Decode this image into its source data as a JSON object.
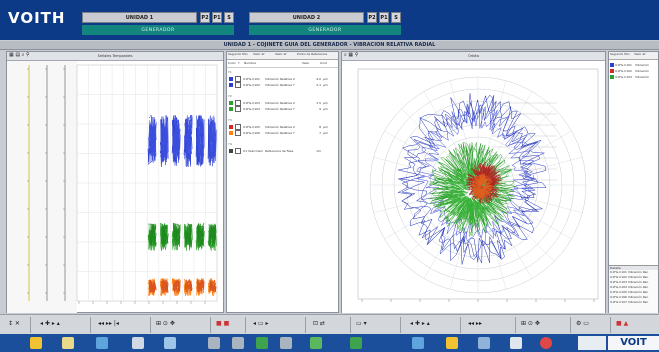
{
  "header": {
    "logo": "VOITH",
    "units": [
      {
        "name": "UNIDAD 1",
        "buttons": [
          "P2",
          "P1",
          "S"
        ],
        "subtitle": "GENERADOR"
      },
      {
        "name": "UNIDAD 2",
        "buttons": [
          "P2",
          "P1",
          "S"
        ],
        "subtitle": "GENERADOR"
      }
    ]
  },
  "view_title": "UNIDAD 1 - COJINETE GUIA DEL GENERADOR - VIBRACION RELATIVA RADIAL",
  "left_panel": {
    "title": "Señales Temporales"
  },
  "mid_panel": {
    "header_cols": [
      "Segundo Min",
      "Valor af",
      "Valor af",
      "Punto de Referencia"
    ],
    "col_labels": [
      "Color",
      "Y",
      "Nombre",
      "Valor",
      "Unid"
    ],
    "groups": [
      {
        "label": "Y1",
        "rows": [
          {
            "color": "#2c3fd0",
            "id": "U1FG.C101",
            "name": "Vibración Relativa X",
            "value": "4.0",
            "unit": "µm"
          },
          {
            "color": "#2c3fd0",
            "id": "U1FG.C102",
            "name": "Vibración Relativa Y",
            "value": "2.1",
            "unit": "µm"
          }
        ]
      },
      {
        "label": "Y2",
        "rows": [
          {
            "color": "#2ca02c",
            "id": "U1FG.C103",
            "name": "Vibración Relativa X",
            "value": "1.5",
            "unit": "µm"
          },
          {
            "color": "#2ca02c",
            "id": "U1FG.C104",
            "name": "Vibración Relativa Y",
            "value": "9",
            "unit": "µm"
          }
        ]
      },
      {
        "label": "Y3",
        "rows": [
          {
            "color": "#d62728",
            "id": "U1FG.C105",
            "name": "Vibración Relativa X",
            "value": "8",
            "unit": "µm"
          },
          {
            "color": "#ff7f0e",
            "id": "U1FG.C106",
            "name": "Vibración Relativa Y",
            "value": "7",
            "unit": "µm"
          }
        ]
      },
      {
        "label": "Y4",
        "rows": [
          {
            "color": "#444444",
            "id": "U1 Velocidad",
            "name": "Referencia de Fase",
            "value": "1m",
            "unit": ""
          }
        ]
      }
    ]
  },
  "orbit_panel": {
    "title": "Orbita"
  },
  "right_panel": {
    "header_cols": [
      "Segundo Min",
      "Valor af"
    ],
    "rows": [
      {
        "color": "#2c3fd0",
        "id": "U1FG.C101",
        "name": "Vibración"
      },
      {
        "color": "#d62728",
        "id": "U1FG.C102",
        "name": "Vibración"
      },
      {
        "color": "#2ca02c",
        "id": "U1FG.C103",
        "name": "Vibración"
      }
    ],
    "log_title": "Detalle",
    "log_rows": [
      "U1FG.C101 Vibración Rel.",
      "U1FG.C102 Vibración Rel.",
      "U1FG.C103 Vibración Rel.",
      "U1FG.C104 Vibración Rel.",
      "U1FG.C105 Vibración Rel.",
      "U1FG.C106 Vibración Rel.",
      "U1FG.C107 Vibración Rel."
    ]
  },
  "taskbar": {
    "brand": "VOIT"
  }
}
